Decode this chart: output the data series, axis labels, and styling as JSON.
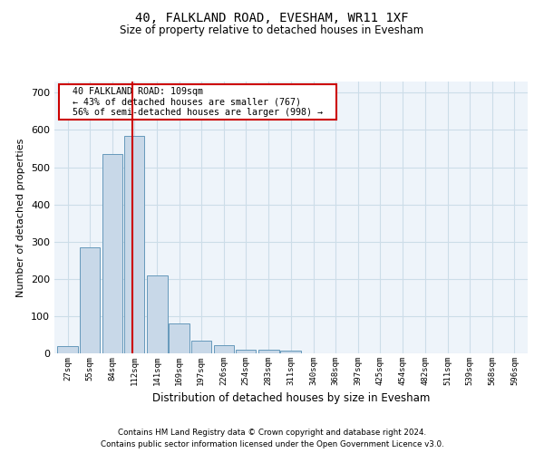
{
  "title1": "40, FALKLAND ROAD, EVESHAM, WR11 1XF",
  "title2": "Size of property relative to detached houses in Evesham",
  "xlabel": "Distribution of detached houses by size in Evesham",
  "ylabel": "Number of detached properties",
  "footer1": "Contains HM Land Registry data © Crown copyright and database right 2024.",
  "footer2": "Contains public sector information licensed under the Open Government Licence v3.0.",
  "annotation_line1": "40 FALKLAND ROAD: 109sqm",
  "annotation_line2": "← 43% of detached houses are smaller (767)",
  "annotation_line3": "56% of semi-detached houses are larger (998) →",
  "property_size": 109,
  "bins": [
    27,
    55,
    84,
    112,
    141,
    169,
    197,
    226,
    254,
    283,
    311,
    340,
    368,
    397,
    425,
    454,
    482,
    511,
    539,
    568,
    596
  ],
  "counts": [
    20,
    285,
    535,
    585,
    210,
    80,
    35,
    22,
    10,
    10,
    8,
    0,
    0,
    0,
    0,
    0,
    0,
    0,
    0,
    0,
    0
  ],
  "bar_color": "#c8d8e8",
  "bar_edge_color": "#6699bb",
  "grid_color": "#ccdde8",
  "bg_color": "#eef4fa",
  "red_line_color": "#cc0000",
  "annotation_box_color": "#cc0000",
  "ylim": [
    0,
    730
  ],
  "yticks": [
    0,
    100,
    200,
    300,
    400,
    500,
    600,
    700
  ]
}
